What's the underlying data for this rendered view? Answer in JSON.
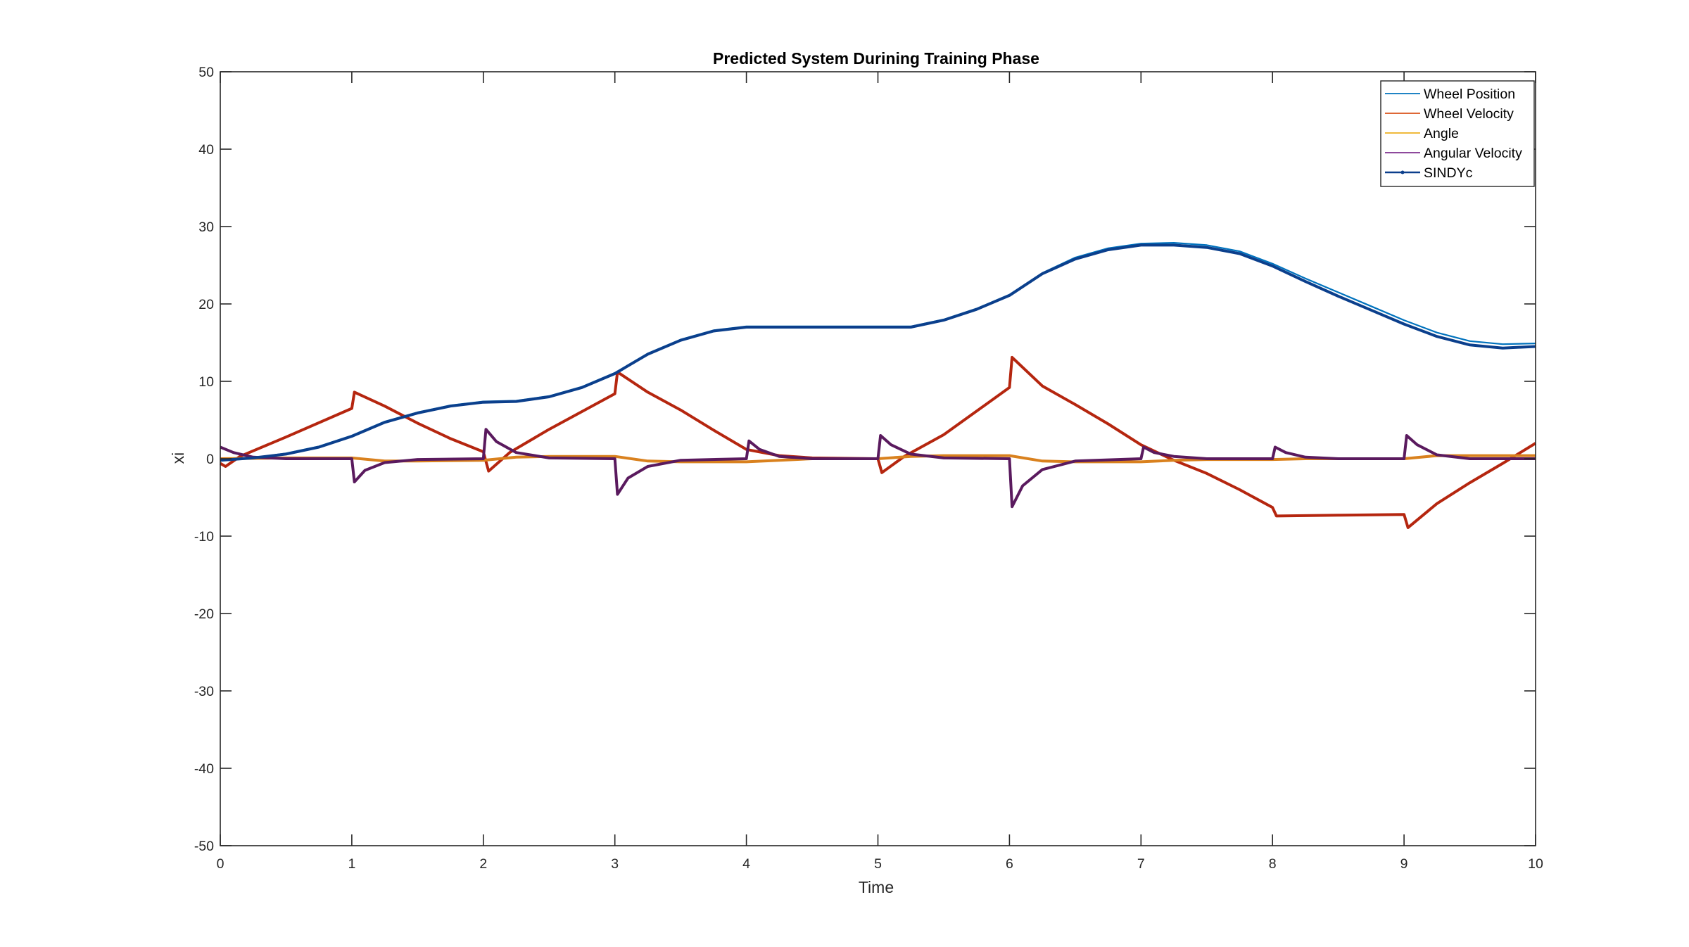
{
  "chart_data": {
    "type": "line",
    "title": "Predicted System Durining Training Phase",
    "xlabel": "Time",
    "ylabel": "xi",
    "xlim": [
      0,
      10
    ],
    "ylim": [
      -50,
      50
    ],
    "xticks": [
      0,
      1,
      2,
      3,
      4,
      5,
      6,
      7,
      8,
      9,
      10
    ],
    "yticks": [
      -50,
      -40,
      -30,
      -20,
      -10,
      0,
      10,
      20,
      30,
      40,
      50
    ],
    "grid": false,
    "legend_position": "top-right",
    "series": [
      {
        "name": "Wheel Position",
        "color": "#0072BD",
        "style": "thin",
        "points": [
          [
            0,
            0
          ],
          [
            0.25,
            0.1
          ],
          [
            0.5,
            0.7
          ],
          [
            0.75,
            1.6
          ],
          [
            1,
            3.0
          ],
          [
            1.25,
            4.8
          ],
          [
            1.5,
            6.0
          ],
          [
            1.75,
            6.9
          ],
          [
            2,
            7.4
          ],
          [
            2.25,
            7.5
          ],
          [
            2.5,
            8.1
          ],
          [
            2.75,
            9.3
          ],
          [
            3,
            11.1
          ],
          [
            3.25,
            13.6
          ],
          [
            3.5,
            15.4
          ],
          [
            3.75,
            16.6
          ],
          [
            4,
            17.1
          ],
          [
            4.5,
            17.1
          ],
          [
            5,
            17.1
          ],
          [
            5.25,
            17.1
          ],
          [
            5.5,
            18.0
          ],
          [
            5.75,
            19.4
          ],
          [
            6,
            21.2
          ],
          [
            6.25,
            24.0
          ],
          [
            6.5,
            26.0
          ],
          [
            6.75,
            27.2
          ],
          [
            7,
            27.8
          ],
          [
            7.25,
            27.9
          ],
          [
            7.5,
            27.6
          ],
          [
            7.75,
            26.8
          ],
          [
            8,
            25.2
          ],
          [
            8.25,
            23.3
          ],
          [
            8.5,
            21.5
          ],
          [
            8.75,
            19.7
          ],
          [
            9,
            17.9
          ],
          [
            9.25,
            16.3
          ],
          [
            9.5,
            15.2
          ],
          [
            9.75,
            14.8
          ],
          [
            10,
            14.9
          ]
        ]
      },
      {
        "name": "Wheel Velocity",
        "color": "#D95319",
        "style": "thin",
        "points": [
          [
            0,
            -0.6
          ],
          [
            0.04,
            -1
          ],
          [
            0.15,
            0.3
          ],
          [
            0.5,
            2.8
          ],
          [
            1,
            6.5
          ],
          [
            1.02,
            8.6
          ],
          [
            1.25,
            6.8
          ],
          [
            1.5,
            4.6
          ],
          [
            1.75,
            2.6
          ],
          [
            2,
            0.9
          ],
          [
            2.04,
            -1.6
          ],
          [
            2.2,
            0.8
          ],
          [
            2.5,
            3.8
          ],
          [
            3,
            8.4
          ],
          [
            3.02,
            11.2
          ],
          [
            3.25,
            8.6
          ],
          [
            3.5,
            6.3
          ],
          [
            3.75,
            3.7
          ],
          [
            4,
            1.2
          ],
          [
            4.25,
            0.4
          ],
          [
            4.5,
            0.1
          ],
          [
            5,
            0
          ],
          [
            5.03,
            -1.8
          ],
          [
            5.2,
            0.3
          ],
          [
            5.5,
            3.1
          ],
          [
            6,
            9.2
          ],
          [
            6.02,
            13.1
          ],
          [
            6.25,
            9.4
          ],
          [
            6.5,
            7.0
          ],
          [
            6.75,
            4.5
          ],
          [
            7,
            1.8
          ],
          [
            7.25,
            -0.2
          ],
          [
            7.5,
            -1.9
          ],
          [
            7.75,
            -4.0
          ],
          [
            8,
            -6.3
          ],
          [
            8.03,
            -7.4
          ],
          [
            8.5,
            -7.3
          ],
          [
            9,
            -7.2
          ],
          [
            9.03,
            -8.9
          ],
          [
            9.25,
            -5.8
          ],
          [
            9.5,
            -3.1
          ],
          [
            9.75,
            -0.6
          ],
          [
            10,
            2.0
          ]
        ]
      },
      {
        "name": "Angle",
        "color": "#EDB120",
        "style": "thin",
        "points": [
          [
            0,
            0
          ],
          [
            0.5,
            0.1
          ],
          [
            1,
            0.1
          ],
          [
            1.25,
            -0.3
          ],
          [
            1.5,
            -0.3
          ],
          [
            2,
            -0.2
          ],
          [
            2.25,
            0.2
          ],
          [
            2.5,
            0.3
          ],
          [
            3,
            0.3
          ],
          [
            3.25,
            -0.3
          ],
          [
            3.5,
            -0.4
          ],
          [
            4,
            -0.4
          ],
          [
            4.25,
            -0.2
          ],
          [
            4.5,
            0
          ],
          [
            5,
            0
          ],
          [
            5.25,
            0.3
          ],
          [
            5.5,
            0.4
          ],
          [
            6,
            0.4
          ],
          [
            6.25,
            -0.3
          ],
          [
            6.5,
            -0.4
          ],
          [
            7,
            -0.4
          ],
          [
            7.25,
            -0.2
          ],
          [
            7.5,
            -0.1
          ],
          [
            8,
            -0.1
          ],
          [
            8.25,
            0
          ],
          [
            8.5,
            0
          ],
          [
            9,
            0
          ],
          [
            9.25,
            0.4
          ],
          [
            9.5,
            0.4
          ],
          [
            10,
            0.4
          ]
        ]
      },
      {
        "name": "Angular Velocity",
        "color": "#7E2F8E",
        "style": "thin",
        "points": [
          [
            0,
            1.5
          ],
          [
            0.1,
            0.8
          ],
          [
            0.25,
            0.2
          ],
          [
            0.5,
            0
          ],
          [
            1,
            0
          ],
          [
            1.02,
            -3.0
          ],
          [
            1.1,
            -1.5
          ],
          [
            1.25,
            -0.5
          ],
          [
            1.5,
            -0.1
          ],
          [
            2,
            0
          ],
          [
            2.02,
            3.8
          ],
          [
            2.1,
            2.2
          ],
          [
            2.25,
            0.8
          ],
          [
            2.5,
            0.1
          ],
          [
            3,
            0
          ],
          [
            3.02,
            -4.6
          ],
          [
            3.1,
            -2.5
          ],
          [
            3.25,
            -1.0
          ],
          [
            3.5,
            -0.2
          ],
          [
            4,
            0
          ],
          [
            4.02,
            2.3
          ],
          [
            4.1,
            1.2
          ],
          [
            4.25,
            0.3
          ],
          [
            4.5,
            0
          ],
          [
            5,
            0
          ],
          [
            5.02,
            3.0
          ],
          [
            5.1,
            1.8
          ],
          [
            5.25,
            0.6
          ],
          [
            5.5,
            0.1
          ],
          [
            6,
            0
          ],
          [
            6.02,
            -6.2
          ],
          [
            6.1,
            -3.5
          ],
          [
            6.25,
            -1.4
          ],
          [
            6.5,
            -0.3
          ],
          [
            7,
            0
          ],
          [
            7.02,
            1.5
          ],
          [
            7.1,
            0.8
          ],
          [
            7.25,
            0.3
          ],
          [
            7.5,
            0
          ],
          [
            8,
            0
          ],
          [
            8.02,
            1.5
          ],
          [
            8.1,
            0.8
          ],
          [
            8.25,
            0.2
          ],
          [
            8.5,
            0
          ],
          [
            9,
            0
          ],
          [
            9.02,
            3.0
          ],
          [
            9.1,
            1.8
          ],
          [
            9.25,
            0.5
          ],
          [
            9.5,
            0
          ],
          [
            10,
            0
          ]
        ]
      },
      {
        "name": "SINDYc",
        "color": "#0B3F8C",
        "style": "thick",
        "note_free": true,
        "points": [
          [
            0,
            -0.2
          ],
          [
            0.25,
            0.1
          ],
          [
            0.5,
            0.6
          ],
          [
            0.75,
            1.5
          ],
          [
            1,
            2.9
          ],
          [
            1.25,
            4.7
          ],
          [
            1.5,
            5.9
          ],
          [
            1.75,
            6.8
          ],
          [
            2,
            7.3
          ],
          [
            2.25,
            7.4
          ],
          [
            2.5,
            8.0
          ],
          [
            2.75,
            9.2
          ],
          [
            3,
            11.0
          ],
          [
            3.25,
            13.5
          ],
          [
            3.5,
            15.3
          ],
          [
            3.75,
            16.5
          ],
          [
            4,
            17.0
          ],
          [
            4.5,
            17.0
          ],
          [
            5,
            17.0
          ],
          [
            5.25,
            17.0
          ],
          [
            5.5,
            17.9
          ],
          [
            5.75,
            19.3
          ],
          [
            6,
            21.1
          ],
          [
            6.25,
            23.9
          ],
          [
            6.5,
            25.8
          ],
          [
            6.75,
            27.0
          ],
          [
            7,
            27.6
          ],
          [
            7.25,
            27.6
          ],
          [
            7.5,
            27.3
          ],
          [
            7.75,
            26.5
          ],
          [
            8,
            24.9
          ],
          [
            8.25,
            22.9
          ],
          [
            8.5,
            21.0
          ],
          [
            8.75,
            19.2
          ],
          [
            9,
            17.4
          ],
          [
            9.25,
            15.8
          ],
          [
            9.5,
            14.7
          ],
          [
            9.75,
            14.3
          ],
          [
            10,
            14.5
          ]
        ]
      }
    ],
    "sindyc_overlays": [
      {
        "color": "#B5260F",
        "of": "Wheel Velocity"
      },
      {
        "color": "#D9811E",
        "of": "Angle"
      },
      {
        "color": "#5A1A5E",
        "of": "Angular Velocity"
      }
    ]
  }
}
